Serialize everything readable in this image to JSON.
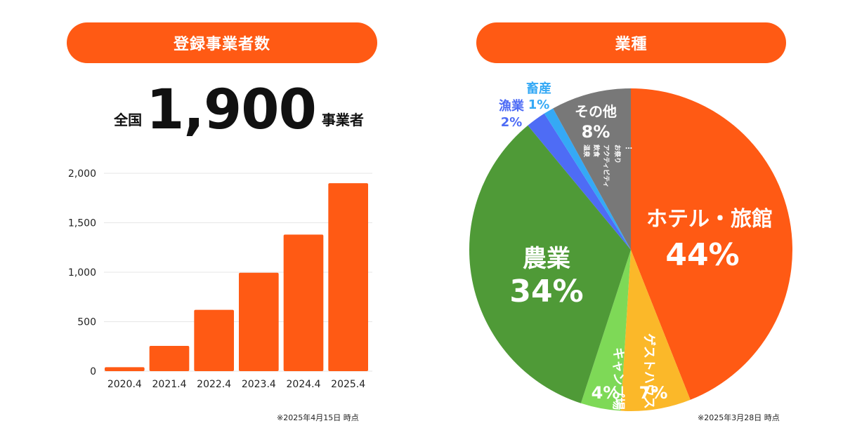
{
  "left_panel": {
    "title": "登録事業者数",
    "total_prefix": "全国",
    "total_value": "1,900",
    "total_suffix": "事業者",
    "note": "※2025年4月15日 時点"
  },
  "right_panel": {
    "title": "業種",
    "note": "※2025年3月28日 時点"
  },
  "colors": {
    "accent": "#ff5a14",
    "bar": "#ff5a14",
    "hotel": "#ff5a14",
    "guesthouse": "#fbb829",
    "camp": "#7ed957",
    "agri": "#4f9a37",
    "fishery": "#4e6cf5",
    "livestock": "#35a9f5",
    "other": "#787878"
  },
  "chart_data": [
    {
      "type": "bar",
      "categories": [
        "2020.4",
        "2021.4",
        "2022.4",
        "2023.4",
        "2024.4",
        "2025.4"
      ],
      "values": [
        40,
        255,
        620,
        995,
        1380,
        1900
      ],
      "ylim": [
        0,
        2000
      ],
      "yticks": [
        "0",
        "500",
        "1,000",
        "1,500",
        "2,000"
      ],
      "ytick_values": [
        0,
        500,
        1000,
        1500,
        2000
      ],
      "grid": true
    },
    {
      "type": "pie",
      "slices": [
        {
          "name": "ホテル・旅館",
          "value": 44,
          "label": "44%",
          "color": "#ff5a14"
        },
        {
          "name": "ゲストハウス",
          "value": 7,
          "label": "7%",
          "color": "#fbb829"
        },
        {
          "name": "キャンプ場",
          "value": 4,
          "label": "4%",
          "color": "#7ed957"
        },
        {
          "name": "農業",
          "value": 34,
          "label": "34%",
          "color": "#4f9a37"
        },
        {
          "name": "漁業",
          "value": 2,
          "label": "2%",
          "color": "#4e6cf5"
        },
        {
          "name": "畜産",
          "value": 1,
          "label": "1%",
          "color": "#35a9f5"
        },
        {
          "name": "その他",
          "value": 8,
          "label": "8%",
          "color": "#787878",
          "sub_labels": [
            "お祭り",
            "アクティビティ",
            "飲食",
            "温泉",
            "…"
          ]
        }
      ]
    }
  ]
}
